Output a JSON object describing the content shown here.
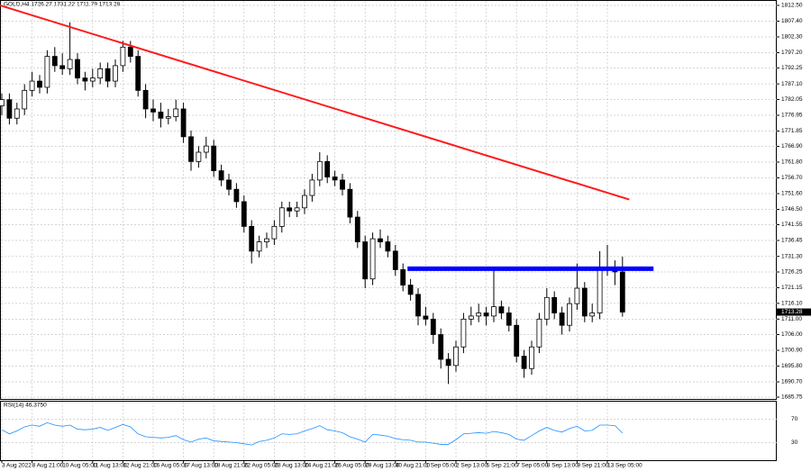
{
  "chart_data": {
    "type": "candlestick",
    "title": "GOLD,H4 1726.27 1731.22 1711.79 1713.28",
    "categories": [
      "3 Aug 2022",
      null,
      null,
      null,
      "8 Aug 21:00",
      null,
      null,
      null,
      "10 Aug 05:00",
      null,
      null,
      null,
      "11 Aug 13:00",
      null,
      null,
      null,
      "12 Aug 21:00",
      null,
      null,
      null,
      "16 Aug 05:00",
      null,
      null,
      null,
      "17 Aug 13:00",
      null,
      null,
      null,
      "18 Aug 21:00",
      null,
      null,
      null,
      "22 Aug 05:00",
      null,
      null,
      null,
      "23 Aug 13:00",
      null,
      null,
      null,
      "24 Aug 21:00",
      null,
      null,
      null,
      "26 Aug 05:00",
      null,
      null,
      null,
      "29 Aug 13:00",
      null,
      null,
      null,
      "30 Aug 21:00",
      null,
      null,
      null,
      "1 Sep 05:00",
      null,
      null,
      null,
      "2 Sep 13:00",
      null,
      null,
      null,
      "5 Sep 21:00",
      null,
      null,
      null,
      "7 Sep 05:00",
      null,
      null,
      null,
      "8 Sep 13:00",
      null,
      null,
      null,
      "9 Sep 21:00",
      null,
      null,
      null,
      "13 Sep 05:00",
      null,
      null
    ],
    "ohlc": [
      [
        1780,
        1784,
        1777,
        1782
      ],
      [
        1782,
        1784,
        1774,
        1776
      ],
      [
        1776,
        1781,
        1774,
        1779
      ],
      [
        1779,
        1787,
        1777,
        1785
      ],
      [
        1785,
        1791,
        1783,
        1788
      ],
      [
        1788,
        1790,
        1784,
        1786
      ],
      [
        1786,
        1798,
        1784,
        1796
      ],
      [
        1796,
        1799,
        1791,
        1793
      ],
      [
        1793,
        1797,
        1790,
        1792
      ],
      [
        1792,
        1807,
        1790,
        1795
      ],
      [
        1795,
        1797,
        1787,
        1789
      ],
      [
        1789,
        1791,
        1785,
        1788
      ],
      [
        1788,
        1792,
        1786,
        1789
      ],
      [
        1789,
        1794,
        1787,
        1792
      ],
      [
        1792,
        1794,
        1786,
        1788
      ],
      [
        1788,
        1795,
        1786,
        1793
      ],
      [
        1793,
        1801,
        1791,
        1799
      ],
      [
        1799,
        1801,
        1794,
        1796
      ],
      [
        1796,
        1798,
        1783,
        1785
      ],
      [
        1785,
        1787,
        1776,
        1779
      ],
      [
        1779,
        1782,
        1775,
        1778
      ],
      [
        1778,
        1781,
        1773,
        1776
      ],
      [
        1776,
        1779,
        1774,
        1776.5
      ],
      [
        1776.5,
        1782,
        1775,
        1779
      ],
      [
        1779,
        1781,
        1768,
        1770
      ],
      [
        1770,
        1772,
        1759,
        1762
      ],
      [
        1762,
        1767,
        1760,
        1765
      ],
      [
        1765,
        1770,
        1763,
        1767
      ],
      [
        1767,
        1769,
        1757,
        1759
      ],
      [
        1759,
        1761,
        1754,
        1756
      ],
      [
        1756,
        1758,
        1751,
        1753
      ],
      [
        1753,
        1755,
        1747,
        1749
      ],
      [
        1749,
        1751,
        1739,
        1741
      ],
      [
        1741,
        1743,
        1729,
        1733
      ],
      [
        1733,
        1738,
        1731,
        1736
      ],
      [
        1736,
        1739,
        1734,
        1737
      ],
      [
        1737,
        1743,
        1735,
        1741
      ],
      [
        1741,
        1749,
        1739,
        1747
      ],
      [
        1747,
        1749,
        1744,
        1746
      ],
      [
        1746,
        1749,
        1744,
        1747
      ],
      [
        1747,
        1753,
        1745,
        1751
      ],
      [
        1751,
        1758,
        1749,
        1756
      ],
      [
        1756,
        1765,
        1754,
        1762
      ],
      [
        1762,
        1764,
        1755,
        1757
      ],
      [
        1757,
        1759,
        1754,
        1756
      ],
      [
        1756,
        1758,
        1751,
        1753
      ],
      [
        1753,
        1755,
        1742,
        1744
      ],
      [
        1744,
        1746,
        1734,
        1736
      ],
      [
        1736,
        1738,
        1721,
        1724
      ],
      [
        1724,
        1739,
        1722,
        1737
      ],
      [
        1737,
        1740,
        1734,
        1736
      ],
      [
        1736,
        1738,
        1731,
        1733
      ],
      [
        1733,
        1735,
        1725,
        1727
      ],
      [
        1727,
        1729,
        1720,
        1722
      ],
      [
        1722,
        1724,
        1717,
        1719
      ],
      [
        1719,
        1721,
        1709,
        1712
      ],
      [
        1712,
        1715,
        1709,
        1711
      ],
      [
        1711,
        1713,
        1703,
        1706
      ],
      [
        1706,
        1708,
        1695,
        1698
      ],
      [
        1698,
        1700,
        1690,
        1696
      ],
      [
        1696,
        1704,
        1694,
        1702
      ],
      [
        1702,
        1713,
        1700,
        1711
      ],
      [
        1711,
        1715,
        1709,
        1712
      ],
      [
        1712,
        1716,
        1710,
        1713
      ],
      [
        1713,
        1715,
        1709,
        1712
      ],
      [
        1712,
        1727,
        1710,
        1715
      ],
      [
        1715,
        1717,
        1711,
        1713
      ],
      [
        1713,
        1715,
        1707,
        1709
      ],
      [
        1709,
        1711,
        1697,
        1699
      ],
      [
        1699,
        1701,
        1692,
        1695
      ],
      [
        1695,
        1704,
        1693,
        1702
      ],
      [
        1702,
        1713,
        1700,
        1711
      ],
      [
        1711,
        1721,
        1709,
        1718
      ],
      [
        1718,
        1720,
        1711,
        1713
      ],
      [
        1713,
        1715,
        1706,
        1709
      ],
      [
        1709,
        1718,
        1707,
        1716
      ],
      [
        1716,
        1729,
        1714,
        1721
      ],
      [
        1721,
        1723,
        1710,
        1712
      ],
      [
        1712,
        1716,
        1710,
        1713
      ],
      [
        1713,
        1733,
        1711,
        1727
      ],
      [
        1727,
        1735,
        1725,
        1727.5
      ],
      [
        1727.5,
        1730,
        1722,
        1726.27
      ],
      [
        1726.27,
        1731.22,
        1711.79,
        1713.28
      ]
    ],
    "ylim": [
      1685.17,
      1813.95
    ],
    "yticks": [
      {
        "value": 1812.5,
        "label": "1812.50"
      },
      {
        "value": 1807.4,
        "label": "1807.40"
      },
      {
        "value": 1802.3,
        "label": "1802.30"
      },
      {
        "value": 1797.2,
        "label": "1797.20"
      },
      {
        "value": 1792.25,
        "label": "1792.25"
      },
      {
        "value": 1787.1,
        "label": "1787.10"
      },
      {
        "value": 1782.05,
        "label": "1782.05"
      },
      {
        "value": 1776.95,
        "label": "1776.95"
      },
      {
        "value": 1771.85,
        "label": "1771.85"
      },
      {
        "value": 1766.9,
        "label": "1766.90"
      },
      {
        "value": 1761.8,
        "label": "1761.80"
      },
      {
        "value": 1756.7,
        "label": "1756.70"
      },
      {
        "value": 1751.6,
        "label": "1751.60"
      },
      {
        "value": 1746.5,
        "label": "1746.50"
      },
      {
        "value": 1741.55,
        "label": "1741.55"
      },
      {
        "value": 1736.45,
        "label": "1736.45"
      },
      {
        "value": 1731.3,
        "label": "1731.30"
      },
      {
        "value": 1726.25,
        "label": "1726.25"
      },
      {
        "value": 1721.15,
        "label": "1721.15"
      },
      {
        "value": 1716.1,
        "label": "1716.10"
      },
      {
        "value": 1711,
        "label": "1711.00"
      },
      {
        "value": 1706,
        "label": "1706.00"
      },
      {
        "value": 1700.9,
        "label": "1700.90"
      },
      {
        "value": 1695.8,
        "label": "1695.80"
      },
      {
        "value": 1690.7,
        "label": "1690.70"
      },
      {
        "value": 1685.75,
        "label": "1685.75"
      }
    ],
    "grid": true,
    "lines": [
      {
        "color": "#ff1a1a",
        "points": [
          [
            -0.24,
            1812.5
          ],
          [
            82.9,
            1749.7
          ]
        ]
      },
      {
        "color": "#0000ff",
        "points": [
          [
            53.6,
            1727.3
          ],
          [
            86.1,
            1727.3
          ]
        ]
      }
    ],
    "rsi": {
      "label": "RSI(14) 46.3750",
      "color": "#1e90ff",
      "ylim": [
        0,
        100
      ],
      "yticks": [
        70,
        30
      ],
      "values": [
        52,
        45,
        50,
        57,
        60,
        58,
        64,
        60,
        58,
        60,
        53,
        52,
        53,
        56,
        51,
        56,
        61,
        57,
        45,
        40,
        39,
        38,
        39,
        42,
        35,
        31,
        36,
        38,
        33,
        32,
        31,
        30,
        28,
        26,
        32,
        34,
        38,
        45,
        44,
        45,
        50,
        54,
        59,
        52,
        50,
        47,
        40,
        36,
        31,
        44,
        43,
        41,
        37,
        35,
        34,
        31,
        31,
        29,
        27,
        27,
        35,
        45,
        46,
        47,
        46,
        49,
        47,
        44,
        36,
        34,
        42,
        50,
        56,
        51,
        48,
        54,
        58,
        50,
        51,
        60,
        60,
        59,
        46.375
      ]
    }
  }
}
